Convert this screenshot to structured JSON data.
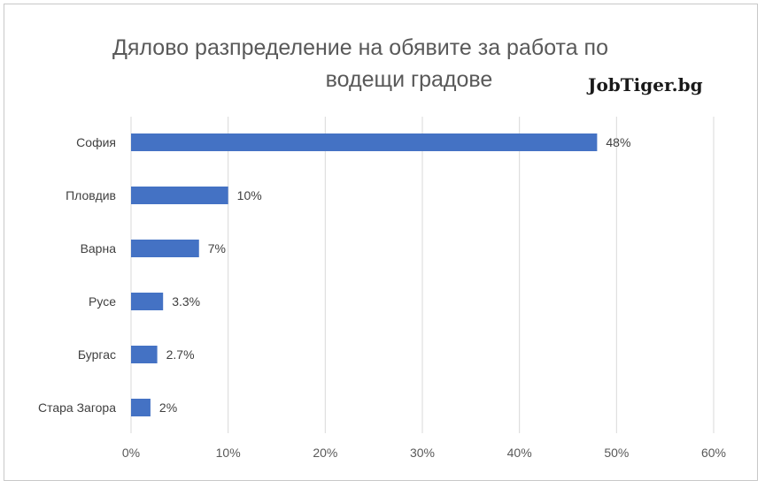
{
  "chart_data": {
    "type": "bar",
    "orientation": "horizontal",
    "title_line1": "Дялово разпределение на обявите за работа по",
    "title_line2": "водещи градове",
    "watermark": "JobTiger.bg",
    "categories": [
      "София",
      "Пловдив",
      "Варна",
      "Русе",
      "Бургас",
      "Стара Загора"
    ],
    "values": [
      48,
      10,
      7,
      3.3,
      2.7,
      2
    ],
    "data_labels": [
      "48%",
      "10%",
      "7%",
      "3.3%",
      "2.7%",
      "2%"
    ],
    "xlim": [
      0,
      60
    ],
    "xticks": [
      "0%",
      "10%",
      "20%",
      "30%",
      "40%",
      "50%",
      "60%"
    ],
    "grid": true,
    "bar_color": "#4472c4",
    "grid_color": "#d9d9d9"
  }
}
